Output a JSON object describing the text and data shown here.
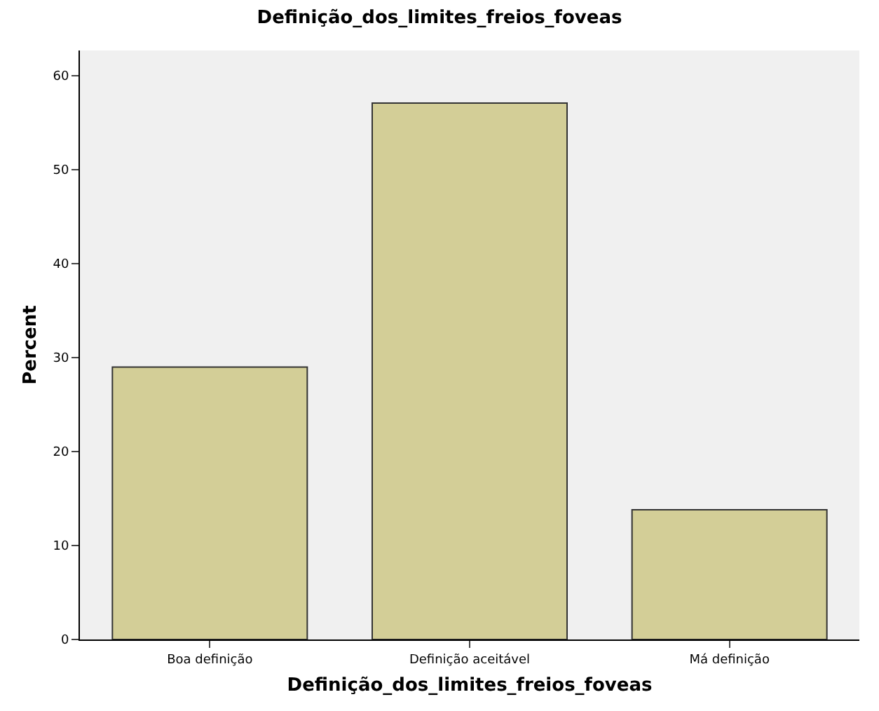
{
  "chart_data": {
    "type": "bar",
    "title": "Definição_dos_limites_freios_foveas",
    "xlabel": "Definição_dos_limites_freios_foveas",
    "ylabel": "Percent",
    "categories": [
      "Boa definição",
      "Definição aceitável",
      "Má definição"
    ],
    "values": [
      29.0,
      57.1,
      13.8
    ],
    "color": "#d3ce97",
    "ylim": [
      0,
      62.7
    ],
    "yticks": [
      0,
      10,
      20,
      30,
      40,
      50,
      60
    ],
    "grid": false
  }
}
